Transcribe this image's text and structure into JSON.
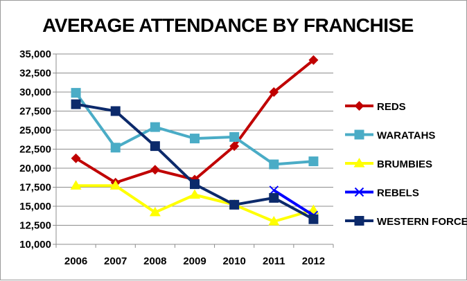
{
  "chart_data": {
    "type": "line",
    "title": "AVERAGE ATTENDANCE BY FRANCHISE",
    "xlabel": "",
    "ylabel": "",
    "categories": [
      "2006",
      "2007",
      "2008",
      "2009",
      "2010",
      "2011",
      "2012"
    ],
    "ylim": [
      10000,
      35000
    ],
    "yticks": [
      10000,
      12500,
      15000,
      17500,
      20000,
      22500,
      25000,
      27500,
      30000,
      32500,
      35000
    ],
    "ytick_labels": [
      "10,000",
      "12,500",
      "15,000",
      "17,500",
      "20,000",
      "22,500",
      "25,000",
      "27,500",
      "30,000",
      "32,500",
      "35,000"
    ],
    "grid": "horizontal",
    "legend": "right",
    "series": [
      {
        "name": "REDS",
        "color": "#c00000",
        "marker": "diamond",
        "values": [
          21300,
          18100,
          19800,
          18500,
          22900,
          30000,
          34200
        ]
      },
      {
        "name": "WARATAHS",
        "color": "#4aacc6",
        "marker": "square",
        "values": [
          29900,
          22700,
          25400,
          23900,
          24100,
          20500,
          20900
        ]
      },
      {
        "name": "BRUMBIES",
        "color": "#ffff00",
        "marker": "triangle",
        "values": [
          17700,
          17700,
          14200,
          16500,
          15200,
          13000,
          14500
        ]
      },
      {
        "name": "REBELS",
        "color": "#0000ff",
        "marker": "x",
        "values": [
          null,
          null,
          null,
          null,
          null,
          17100,
          13800
        ]
      },
      {
        "name": "WESTERN FORCE",
        "color": "#0c2a6b",
        "marker": "square",
        "values": [
          28400,
          27500,
          22900,
          17900,
          15200,
          16100,
          13300
        ]
      }
    ]
  }
}
